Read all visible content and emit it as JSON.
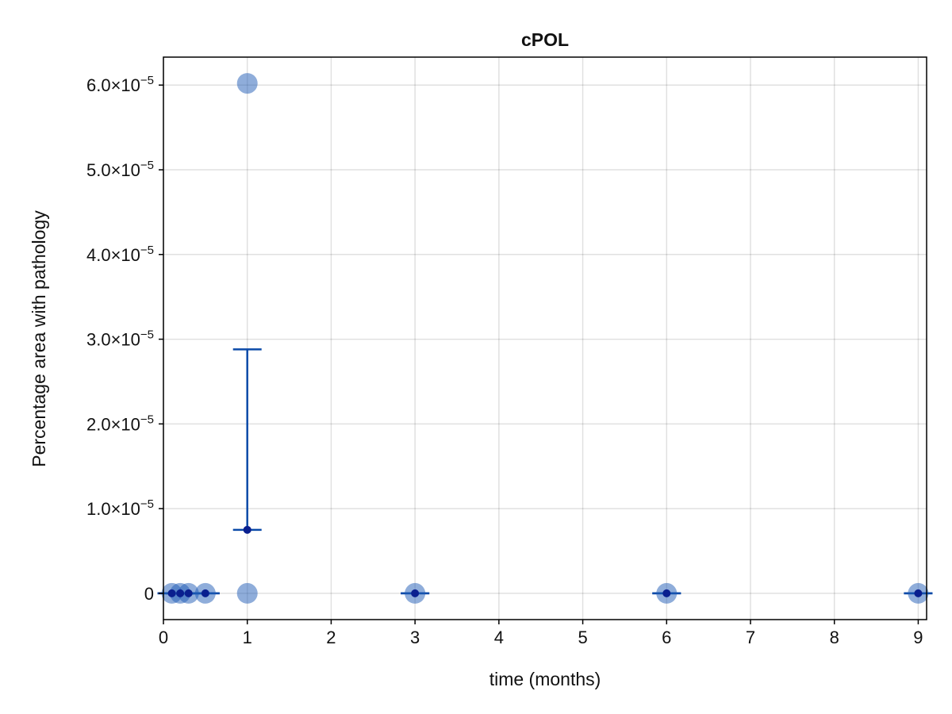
{
  "chart_data": {
    "type": "scatter",
    "title": "cPOL",
    "xlabel": "time (months)",
    "ylabel": "Percentage area with pathology",
    "xlim": [
      0,
      9.1
    ],
    "ylim": [
      -3.1e-06,
      6.33e-05
    ],
    "grid": true,
    "x_ticks": [
      0,
      1,
      2,
      3,
      4,
      5,
      6,
      7,
      8,
      9
    ],
    "x_tick_labels": [
      "0",
      "1",
      "2",
      "3",
      "4",
      "5",
      "6",
      "7",
      "8",
      "9"
    ],
    "y_ticks": [
      0,
      1e-05,
      2e-05,
      3e-05,
      4e-05,
      5e-05,
      6e-05
    ],
    "y_tick_labels": [
      {
        "mantissa": "0",
        "exp": ""
      },
      {
        "mantissa": "1.0×10",
        "exp": "−5"
      },
      {
        "mantissa": "2.0×10",
        "exp": "−5"
      },
      {
        "mantissa": "3.0×10",
        "exp": "−5"
      },
      {
        "mantissa": "4.0×10",
        "exp": "−5"
      },
      {
        "mantissa": "5.0×10",
        "exp": "−5"
      },
      {
        "mantissa": "6.0×10",
        "exp": "−5"
      }
    ],
    "colors": {
      "points": "#1f5cb5",
      "errorbar": "#0b4aa8",
      "mean": "#0a1f8f"
    },
    "individual_points": [
      {
        "x": 0.1,
        "y": 0
      },
      {
        "x": 0.2,
        "y": 0
      },
      {
        "x": 0.3,
        "y": 0
      },
      {
        "x": 0.5,
        "y": 0
      },
      {
        "x": 1,
        "y": 0
      },
      {
        "x": 1,
        "y": 6.02e-05
      },
      {
        "x": 3,
        "y": 0
      },
      {
        "x": 6,
        "y": 0
      },
      {
        "x": 9,
        "y": 0
      }
    ],
    "errorbars": [
      {
        "x": 0.1,
        "mean": 0,
        "low": 0,
        "high": 0
      },
      {
        "x": 0.2,
        "mean": 0,
        "low": 0,
        "high": 0
      },
      {
        "x": 0.3,
        "mean": 0,
        "low": 0,
        "high": 0
      },
      {
        "x": 0.5,
        "mean": 0,
        "low": 0,
        "high": 0
      },
      {
        "x": 1,
        "mean": 7.5e-06,
        "low": 7.5e-06,
        "high": 2.88e-05
      },
      {
        "x": 3,
        "mean": 0,
        "low": 0,
        "high": 0
      },
      {
        "x": 6,
        "mean": 0,
        "low": 0,
        "high": 0
      },
      {
        "x": 9,
        "mean": 0,
        "low": 0,
        "high": 0
      }
    ]
  }
}
